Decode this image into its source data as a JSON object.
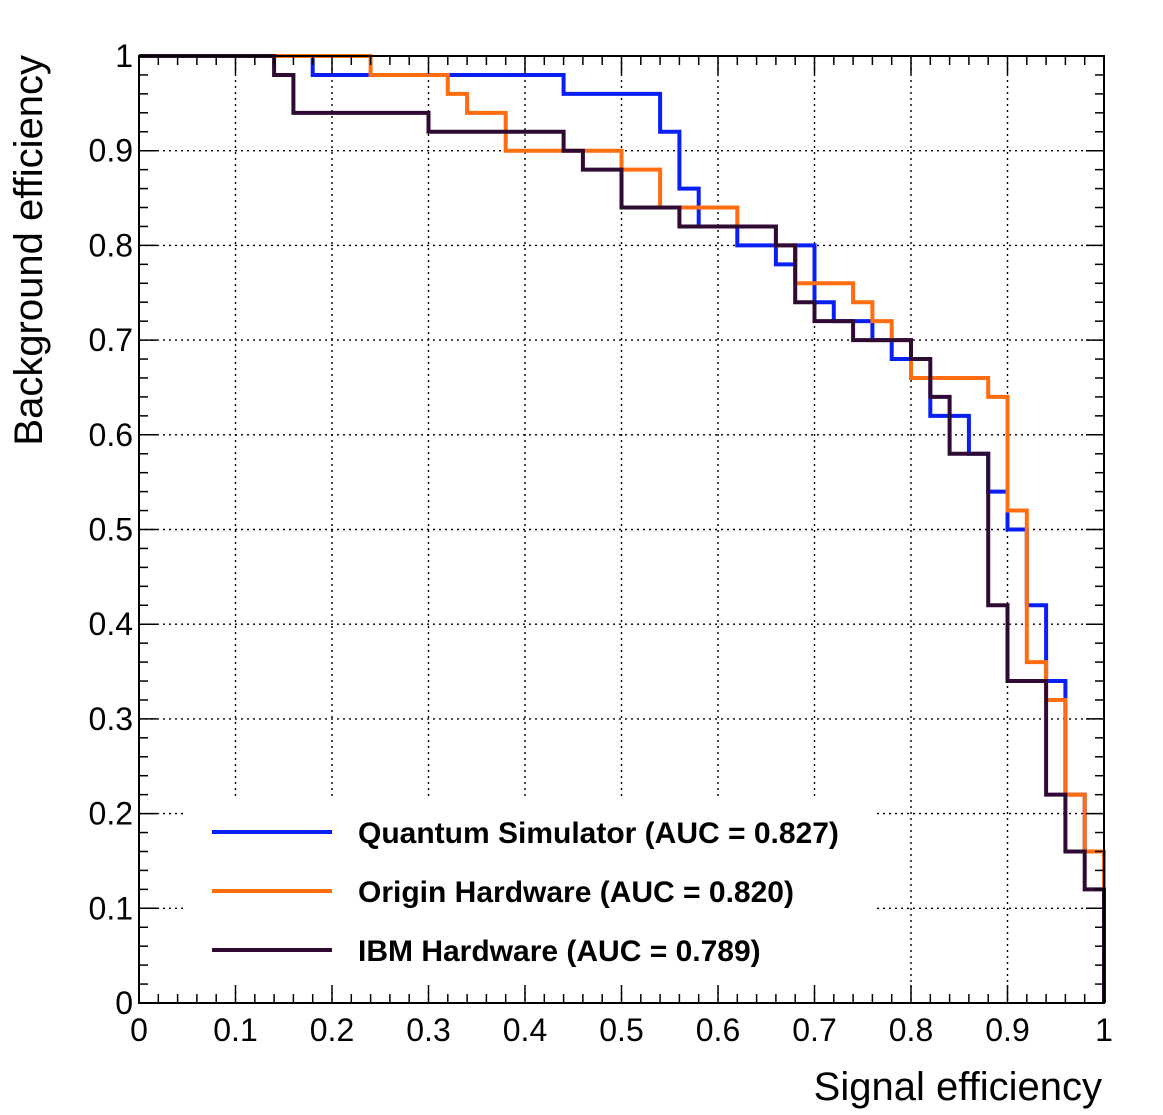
{
  "chart_data": {
    "type": "line",
    "title": "",
    "xlabel": "Signal efficiency",
    "ylabel": "Background efficiency",
    "xlim": [
      0,
      1
    ],
    "ylim": [
      0,
      1
    ],
    "grid": true,
    "legend_position": "bottom-left",
    "x_ticks": [
      {
        "value": 0,
        "label": "0"
      },
      {
        "value": 0.1,
        "label": "0.1"
      },
      {
        "value": 0.2,
        "label": "0.2"
      },
      {
        "value": 0.3,
        "label": "0.3"
      },
      {
        "value": 0.4,
        "label": "0.4"
      },
      {
        "value": 0.5,
        "label": "0.5"
      },
      {
        "value": 0.6,
        "label": "0.6"
      },
      {
        "value": 0.7,
        "label": "0.7"
      },
      {
        "value": 0.8,
        "label": "0.8"
      },
      {
        "value": 0.9,
        "label": "0.9"
      },
      {
        "value": 1,
        "label": "1"
      }
    ],
    "y_ticks": [
      {
        "value": 0,
        "label": "0"
      },
      {
        "value": 0.1,
        "label": "0.1"
      },
      {
        "value": 0.2,
        "label": "0.2"
      },
      {
        "value": 0.3,
        "label": "0.3"
      },
      {
        "value": 0.4,
        "label": "0.4"
      },
      {
        "value": 0.5,
        "label": "0.5"
      },
      {
        "value": 0.6,
        "label": "0.6"
      },
      {
        "value": 0.7,
        "label": "0.7"
      },
      {
        "value": 0.8,
        "label": "0.8"
      },
      {
        "value": 0.9,
        "label": "0.9"
      },
      {
        "value": 1,
        "label": "1"
      }
    ],
    "series": [
      {
        "name": "Quantum Simulator (AUC = 0.827)",
        "color": "#0a1ff5",
        "points": [
          [
            0,
            1
          ],
          [
            0.18,
            1
          ],
          [
            0.18,
            0.98
          ],
          [
            0.44,
            0.98
          ],
          [
            0.44,
            0.96
          ],
          [
            0.54,
            0.96
          ],
          [
            0.54,
            0.92
          ],
          [
            0.56,
            0.92
          ],
          [
            0.56,
            0.86
          ],
          [
            0.58,
            0.86
          ],
          [
            0.58,
            0.82
          ],
          [
            0.62,
            0.82
          ],
          [
            0.62,
            0.8
          ],
          [
            0.66,
            0.8
          ],
          [
            0.66,
            0.78
          ],
          [
            0.68,
            0.78
          ],
          [
            0.68,
            0.8
          ],
          [
            0.7,
            0.8
          ],
          [
            0.7,
            0.74
          ],
          [
            0.72,
            0.74
          ],
          [
            0.72,
            0.72
          ],
          [
            0.76,
            0.72
          ],
          [
            0.76,
            0.7
          ],
          [
            0.78,
            0.7
          ],
          [
            0.78,
            0.68
          ],
          [
            0.8,
            0.68
          ],
          [
            0.8,
            0.66
          ],
          [
            0.82,
            0.66
          ],
          [
            0.82,
            0.62
          ],
          [
            0.86,
            0.62
          ],
          [
            0.86,
            0.58
          ],
          [
            0.88,
            0.58
          ],
          [
            0.88,
            0.54
          ],
          [
            0.9,
            0.54
          ],
          [
            0.9,
            0.5
          ],
          [
            0.92,
            0.5
          ],
          [
            0.92,
            0.42
          ],
          [
            0.94,
            0.42
          ],
          [
            0.94,
            0.34
          ],
          [
            0.96,
            0.34
          ],
          [
            0.96,
            0.22
          ],
          [
            0.98,
            0.22
          ],
          [
            0.98,
            0.16
          ],
          [
            1,
            0.16
          ],
          [
            1,
            0
          ]
        ]
      },
      {
        "name": "Origin Hardware (AUC = 0.820)",
        "color": "#ff6d10",
        "points": [
          [
            0,
            1
          ],
          [
            0.24,
            1
          ],
          [
            0.24,
            0.98
          ],
          [
            0.32,
            0.98
          ],
          [
            0.32,
            0.96
          ],
          [
            0.34,
            0.96
          ],
          [
            0.34,
            0.94
          ],
          [
            0.38,
            0.94
          ],
          [
            0.38,
            0.9
          ],
          [
            0.5,
            0.9
          ],
          [
            0.5,
            0.88
          ],
          [
            0.54,
            0.88
          ],
          [
            0.54,
            0.84
          ],
          [
            0.62,
            0.84
          ],
          [
            0.62,
            0.82
          ],
          [
            0.66,
            0.82
          ],
          [
            0.66,
            0.8
          ],
          [
            0.68,
            0.8
          ],
          [
            0.68,
            0.76
          ],
          [
            0.74,
            0.76
          ],
          [
            0.74,
            0.74
          ],
          [
            0.76,
            0.74
          ],
          [
            0.76,
            0.72
          ],
          [
            0.78,
            0.72
          ],
          [
            0.78,
            0.7
          ],
          [
            0.8,
            0.7
          ],
          [
            0.8,
            0.66
          ],
          [
            0.88,
            0.66
          ],
          [
            0.88,
            0.64
          ],
          [
            0.9,
            0.64
          ],
          [
            0.9,
            0.52
          ],
          [
            0.92,
            0.52
          ],
          [
            0.92,
            0.36
          ],
          [
            0.94,
            0.36
          ],
          [
            0.94,
            0.32
          ],
          [
            0.96,
            0.32
          ],
          [
            0.96,
            0.22
          ],
          [
            0.98,
            0.22
          ],
          [
            0.98,
            0.16
          ],
          [
            1,
            0.16
          ],
          [
            1,
            0
          ]
        ]
      },
      {
        "name": "IBM Hardware (AUC = 0.789)",
        "color": "#2f0a33",
        "points": [
          [
            0,
            1
          ],
          [
            0.14,
            1
          ],
          [
            0.14,
            0.98
          ],
          [
            0.16,
            0.98
          ],
          [
            0.16,
            0.94
          ],
          [
            0.3,
            0.94
          ],
          [
            0.3,
            0.92
          ],
          [
            0.44,
            0.92
          ],
          [
            0.44,
            0.9
          ],
          [
            0.46,
            0.9
          ],
          [
            0.46,
            0.88
          ],
          [
            0.5,
            0.88
          ],
          [
            0.5,
            0.84
          ],
          [
            0.56,
            0.84
          ],
          [
            0.56,
            0.82
          ],
          [
            0.66,
            0.82
          ],
          [
            0.66,
            0.8
          ],
          [
            0.68,
            0.8
          ],
          [
            0.68,
            0.74
          ],
          [
            0.7,
            0.74
          ],
          [
            0.7,
            0.72
          ],
          [
            0.74,
            0.72
          ],
          [
            0.74,
            0.7
          ],
          [
            0.8,
            0.7
          ],
          [
            0.8,
            0.68
          ],
          [
            0.82,
            0.68
          ],
          [
            0.82,
            0.64
          ],
          [
            0.84,
            0.64
          ],
          [
            0.84,
            0.58
          ],
          [
            0.88,
            0.58
          ],
          [
            0.88,
            0.42
          ],
          [
            0.9,
            0.42
          ],
          [
            0.9,
            0.34
          ],
          [
            0.94,
            0.34
          ],
          [
            0.94,
            0.22
          ],
          [
            0.96,
            0.22
          ],
          [
            0.96,
            0.16
          ],
          [
            0.98,
            0.16
          ],
          [
            0.98,
            0.12
          ],
          [
            1,
            0.12
          ],
          [
            1,
            0
          ]
        ]
      }
    ]
  }
}
